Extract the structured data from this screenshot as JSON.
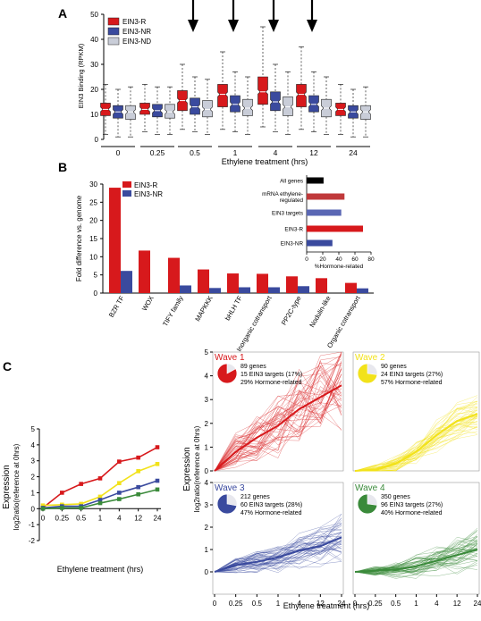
{
  "colors": {
    "red": "#d7191c",
    "blue": "#3a4a9e",
    "grey": "#c9cdd8",
    "yellow": "#f2e21a",
    "green": "#3a8a3a",
    "black": "#000000"
  },
  "panels": {
    "a": "A",
    "b": "B",
    "c": "C"
  },
  "chart_data": [
    {
      "type": "box",
      "panel": "A",
      "ylabel": "EIN3 Binding (RPKM)",
      "xlabel": "Ethylene treatment (hrs)",
      "ylim": [
        0,
        50
      ],
      "yticks": [
        0,
        10,
        20,
        30,
        40,
        50
      ],
      "categories": [
        "0",
        "0.25",
        "0.5",
        "1",
        "4",
        "12",
        "24"
      ],
      "highlighted": [
        "0.5",
        "1",
        "4",
        "12"
      ],
      "series": [
        {
          "name": "EIN3-R",
          "color": "#d7191c",
          "boxes": [
            {
              "min": 2,
              "q1": 9.5,
              "median": 12,
              "q3": 14.5,
              "max": 22
            },
            {
              "min": 3,
              "q1": 10,
              "median": 12,
              "q3": 14.5,
              "max": 22
            },
            {
              "min": 4,
              "q1": 11.5,
              "median": 15.5,
              "q3": 19.5,
              "max": 30
            },
            {
              "min": 4,
              "q1": 13,
              "median": 18,
              "q3": 22,
              "max": 35
            },
            {
              "min": 5,
              "q1": 14,
              "median": 19,
              "q3": 25,
              "max": 45
            },
            {
              "min": 4,
              "q1": 13,
              "median": 18,
              "q3": 22,
              "max": 37
            },
            {
              "min": 2,
              "q1": 9.5,
              "median": 12,
              "q3": 14.5,
              "max": 22
            }
          ]
        },
        {
          "name": "EIN3-NR",
          "color": "#3a4a9e",
          "boxes": [
            {
              "min": 1,
              "q1": 8.5,
              "median": 11,
              "q3": 13.5,
              "max": 20
            },
            {
              "min": 2,
              "q1": 9,
              "median": 11.5,
              "q3": 14,
              "max": 21
            },
            {
              "min": 3,
              "q1": 10,
              "median": 13,
              "q3": 16.5,
              "max": 25
            },
            {
              "min": 3,
              "q1": 11,
              "median": 14,
              "q3": 17.5,
              "max": 27
            },
            {
              "min": 3,
              "q1": 11.5,
              "median": 15,
              "q3": 19,
              "max": 30
            },
            {
              "min": 3,
              "q1": 11,
              "median": 14,
              "q3": 17.5,
              "max": 27
            },
            {
              "min": 1,
              "q1": 8.5,
              "median": 11,
              "q3": 13.5,
              "max": 20
            }
          ]
        },
        {
          "name": "EIN3-ND",
          "color": "#c9cdd8",
          "boxes": [
            {
              "min": 1,
              "q1": 8,
              "median": 11,
              "q3": 13.5,
              "max": 21
            },
            {
              "min": 2,
              "q1": 8.5,
              "median": 11,
              "q3": 14,
              "max": 21
            },
            {
              "min": 2,
              "q1": 9,
              "median": 12,
              "q3": 15.5,
              "max": 24
            },
            {
              "min": 2,
              "q1": 9.5,
              "median": 12.5,
              "q3": 16,
              "max": 25
            },
            {
              "min": 2,
              "q1": 9.5,
              "median": 13,
              "q3": 17,
              "max": 27
            },
            {
              "min": 2,
              "q1": 9,
              "median": 12.5,
              "q3": 16,
              "max": 25
            },
            {
              "min": 1,
              "q1": 8,
              "median": 11,
              "q3": 13.5,
              "max": 21
            }
          ]
        }
      ]
    },
    {
      "type": "bar",
      "panel": "B",
      "ylabel": "Fold difference vs. genome",
      "ylim": [
        0,
        30
      ],
      "yticks": [
        0,
        5,
        10,
        15,
        20,
        25,
        30
      ],
      "categories": [
        "BZR TF",
        "WOX",
        "TIFY family",
        "MAPKKK",
        "bHLH TF",
        "Inorganic cotransport",
        "PP2C-type",
        "Nodulin-like",
        "Organic cotransport"
      ],
      "series": [
        {
          "name": "EIN3-R",
          "color": "#d7191c",
          "values": [
            29,
            11.7,
            9.7,
            6.5,
            5.4,
            5.3,
            4.6,
            4.1,
            2.8
          ]
        },
        {
          "name": "EIN3-NR",
          "color": "#3a4a9e",
          "values": [
            6.1,
            0,
            2.1,
            1.4,
            1.6,
            1.6,
            1.9,
            0,
            1.3
          ]
        }
      ]
    },
    {
      "type": "bar",
      "orientation": "horizontal",
      "panel": "B-inset",
      "xlabel": "%Hormone-related",
      "xlim": [
        0,
        80
      ],
      "xticks": [
        0,
        20,
        40,
        60,
        80
      ],
      "categories": [
        "All genes",
        "mRNA ethylene-regulated",
        "EIN3 targets",
        "EIN3-R",
        "EIN3-NR"
      ],
      "values": [
        21,
        47,
        43,
        70,
        32
      ],
      "colors": [
        "#000000",
        "#c0393b",
        "#5a67b4",
        "#d7191c",
        "#3a4a9e"
      ]
    },
    {
      "type": "line",
      "panel": "C-summary",
      "ylabel": "Expression",
      "ylabel2": "log2ratio(reference at 0hrs)",
      "xlabel": "Ethylene treatment (hrs)",
      "ylim": [
        -2,
        5
      ],
      "yticks": [
        -2,
        -1,
        0,
        1,
        2,
        3,
        4,
        5
      ],
      "x": [
        "0",
        "0.25",
        "0.5",
        "1",
        "4",
        "12",
        "24"
      ],
      "series": [
        {
          "name": "Wave 1",
          "color": "#d7191c",
          "values": [
            0.05,
            1.0,
            1.55,
            1.9,
            2.95,
            3.2,
            3.85
          ]
        },
        {
          "name": "Wave 2",
          "color": "#f2e21a",
          "values": [
            0.2,
            0.25,
            0.3,
            0.75,
            1.6,
            2.35,
            2.8
          ]
        },
        {
          "name": "Wave 3",
          "color": "#3a4a9e",
          "values": [
            0.05,
            0.15,
            0.15,
            0.55,
            1.0,
            1.35,
            1.75
          ]
        },
        {
          "name": "Wave 4",
          "color": "#3a8a3a",
          "values": [
            0.0,
            0.05,
            0.05,
            0.35,
            0.6,
            0.9,
            1.2
          ]
        }
      ]
    },
    {
      "type": "line",
      "panel": "C-waves",
      "ylabel": "Expression",
      "ylabel2": "log2ratio(reference at 0hrs)",
      "xlabel": "Ethylene treatment (hrs)",
      "x": [
        "0",
        "0.25",
        "0.5",
        "1",
        "4",
        "12",
        "24"
      ],
      "yticks_top": [
        0,
        1,
        2,
        3,
        4,
        5
      ],
      "yticks_bottom": [
        0,
        1,
        2,
        3,
        4
      ],
      "waves": [
        {
          "name": "Wave 1",
          "color": "#d7191c",
          "genes": "89 genes",
          "targets": "15 EIN3 targets (17%)",
          "hormone": "29% Hormone-related",
          "pie": 0.17,
          "ylim": [
            0,
            5
          ],
          "mean": [
            0,
            0.8,
            1.4,
            1.9,
            2.6,
            3.1,
            3.6
          ]
        },
        {
          "name": "Wave 2",
          "color": "#f2e21a",
          "genes": "90 genes",
          "targets": "24 EIN3 targets (27%)",
          "hormone": "57% Hormone-related",
          "pie": 0.27,
          "ylim": [
            0,
            5
          ],
          "mean": [
            0,
            0.05,
            0.3,
            0.8,
            1.5,
            2.1,
            2.4
          ]
        },
        {
          "name": "Wave 3",
          "color": "#3a4a9e",
          "genes": "212 genes",
          "targets": "60 EIN3 targets (28%)",
          "hormone": "47% Hormone-related",
          "pie": 0.28,
          "ylim": [
            -1,
            4
          ],
          "mean": [
            0,
            0.3,
            0.45,
            0.65,
            0.95,
            1.15,
            1.55
          ]
        },
        {
          "name": "Wave 4",
          "color": "#3a8a3a",
          "genes": "350 genes",
          "targets": "96 EIN3 targets (27%)",
          "hormone": "40% Hormone-related",
          "pie": 0.27,
          "ylim": [
            -1,
            4
          ],
          "mean": [
            0,
            0.05,
            0.1,
            0.25,
            0.5,
            0.75,
            1.0
          ]
        }
      ]
    }
  ]
}
